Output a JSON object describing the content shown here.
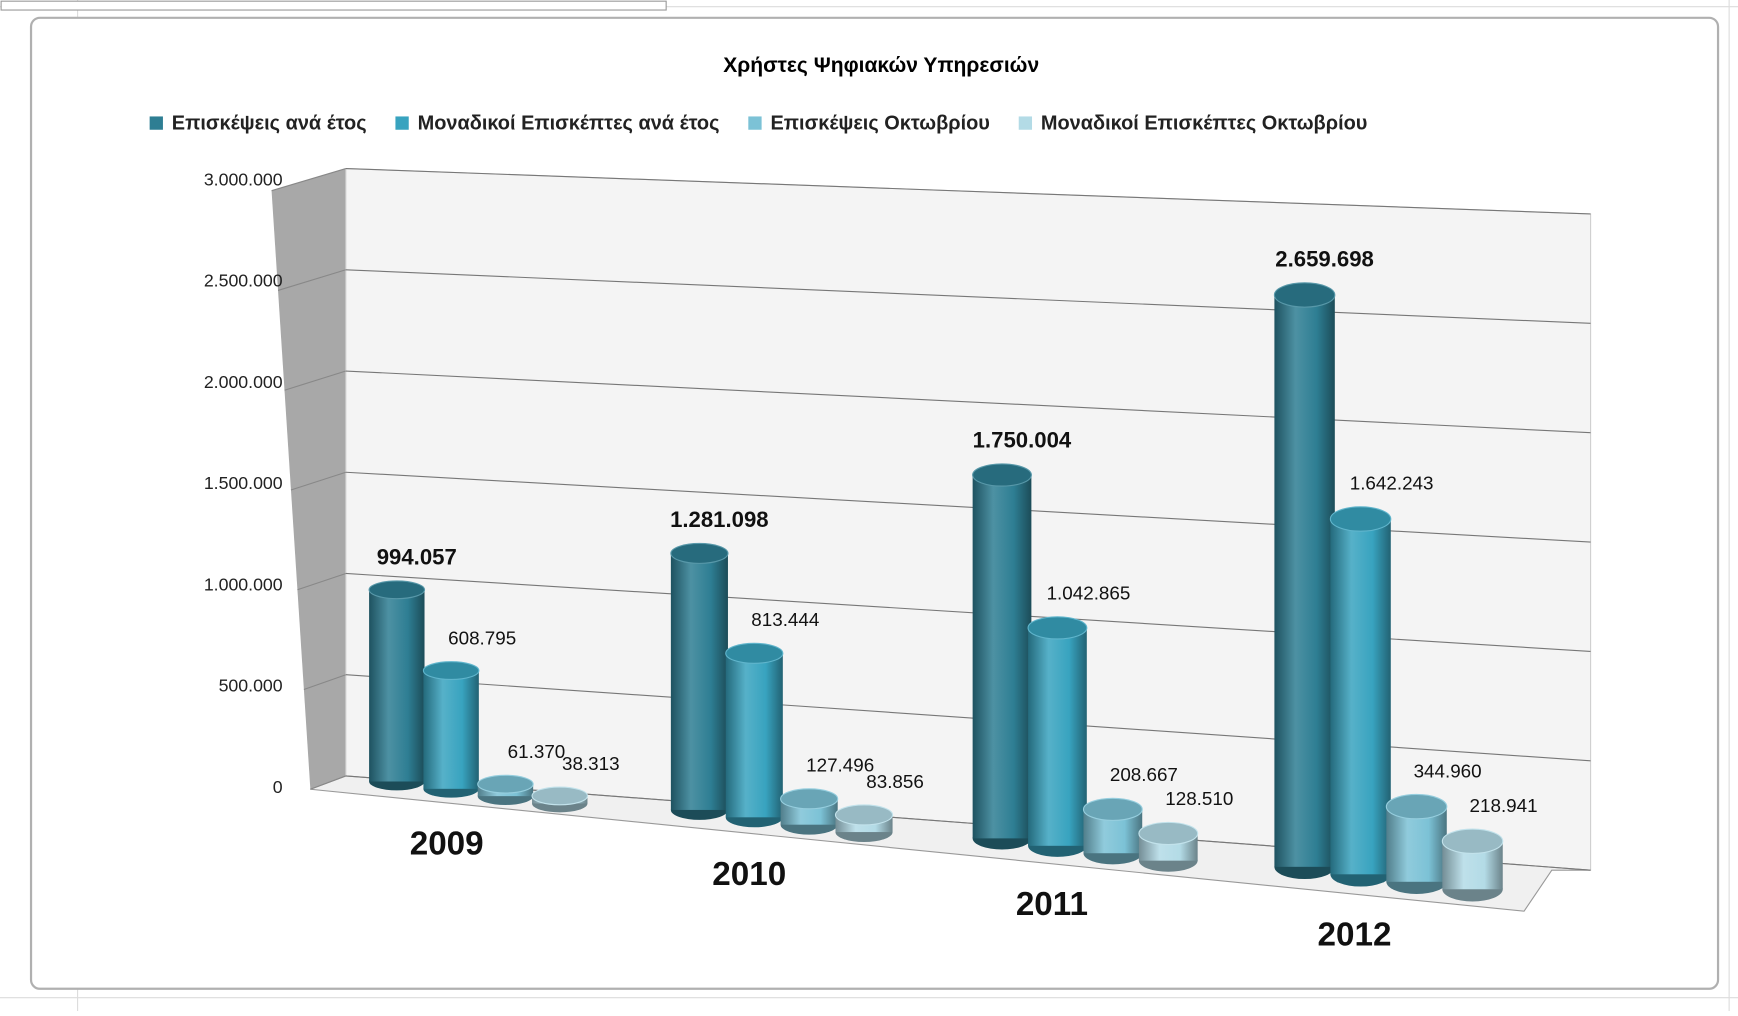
{
  "chart_data": {
    "type": "bar3d",
    "title": "Χρήστες Ψηφιακών Υπηρεσιών",
    "categories": [
      "2009",
      "2010",
      "2011",
      "2012"
    ],
    "series": [
      {
        "name": "Επισκέψεις ανά έτος",
        "color": "#2e7e93",
        "values": [
          994057,
          1281098,
          1750004,
          2659698
        ],
        "value_labels": [
          "994.057",
          "1.281.098",
          "1.750.004",
          "2.659.698"
        ]
      },
      {
        "name": "Μοναδικοί Επισκέπτες ανά έτος",
        "color": "#38a3bf",
        "values": [
          608795,
          813444,
          1042865,
          1642243
        ],
        "value_labels": [
          "608.795",
          "813.444",
          "1.042.865",
          "1.642.243"
        ]
      },
      {
        "name": "Επισκέψεις Οκτωβρίου",
        "color": "#7cc2d6",
        "values": [
          61370,
          127496,
          208667,
          344960
        ],
        "value_labels": [
          "61.370",
          "127.496",
          "208.667",
          "344.960"
        ]
      },
      {
        "name": "Μοναδικοί Επισκέπτες Οκτωβρίου",
        "color": "#b3dbe6",
        "values": [
          38313,
          83856,
          128510,
          218941
        ],
        "value_labels": [
          "38.313",
          "83.856",
          "128.510",
          "218.941"
        ]
      }
    ],
    "ylim": [
      0,
      3000000
    ],
    "yticks": [
      0,
      {
        "value": 500000,
        "label": "500.000"
      },
      {
        "value": 1000000,
        "label": "1.000.000"
      },
      {
        "value": 1500000,
        "label": "1.500.000"
      },
      {
        "value": 2000000,
        "label": "2.000.000"
      },
      {
        "value": 2500000,
        "label": "2.500.000"
      },
      {
        "value": 3000000,
        "label": "3.000.000"
      }
    ],
    "grid": true,
    "legend": "top"
  }
}
